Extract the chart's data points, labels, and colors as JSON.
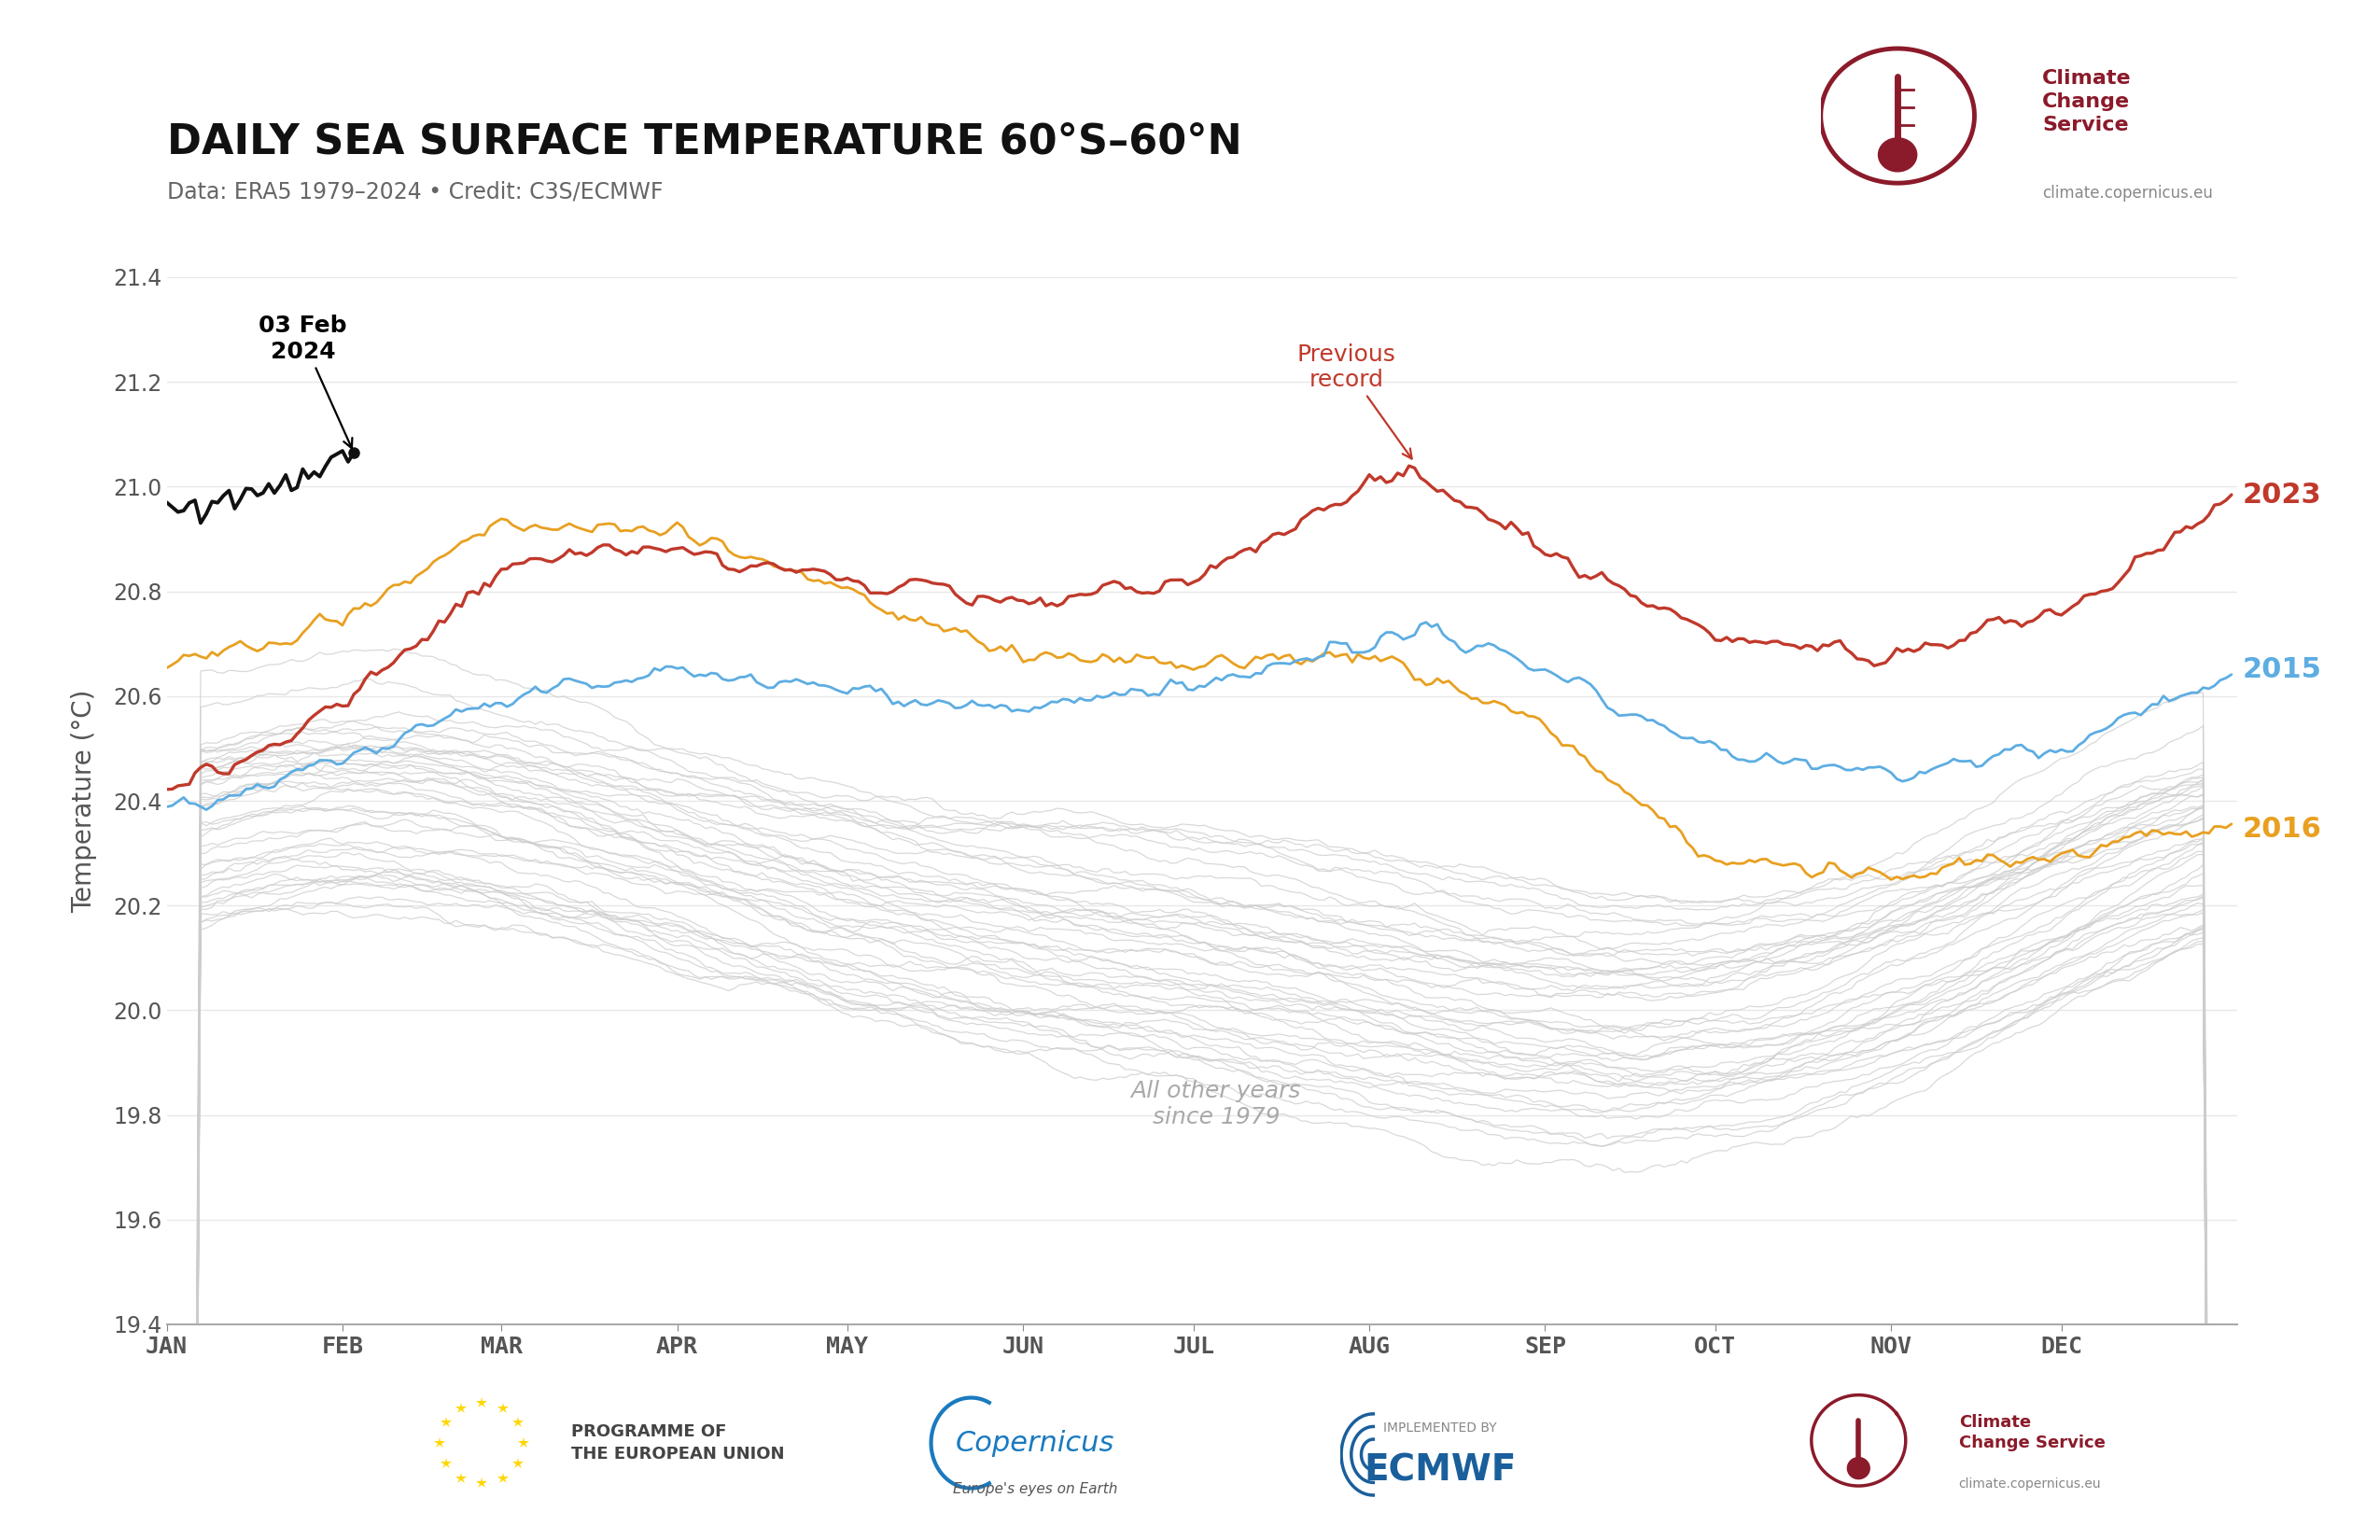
{
  "title": "DAILY SEA SURFACE TEMPERATURE 60°S–60°N",
  "subtitle": "Data: ERA5 1979–2024 • Credit: C3S/ECMWF",
  "ylabel": "Temperature (°C)",
  "ylim": [
    19.4,
    21.4
  ],
  "yticks": [
    19.4,
    19.6,
    19.8,
    20.0,
    20.2,
    20.4,
    20.6,
    20.8,
    21.0,
    21.2,
    21.4
  ],
  "months": [
    "JAN",
    "FEB",
    "MAR",
    "APR",
    "MAY",
    "JUN",
    "JUL",
    "AUG",
    "SEP",
    "OCT",
    "NOV",
    "DEC"
  ],
  "month_starts": [
    0,
    31,
    59,
    90,
    120,
    151,
    181,
    212,
    243,
    273,
    304,
    334
  ],
  "color_2023": "#c0392b",
  "color_2015": "#5dade2",
  "color_2016": "#e8a020",
  "color_2024": "#111111",
  "color_others": "#cccccc",
  "color_prev_record": "#c0392b",
  "annotation_date": "03 Feb\n2024",
  "annotation_prev": "Previous\nrecord",
  "label_2023": "2023",
  "label_2015": "2015",
  "label_2016": "2016",
  "background_color": "#ffffff",
  "grid_color": "#e8e8e8",
  "ccs_color": "#8b1a2a",
  "title_color": "#111111",
  "subtitle_color": "#666666",
  "axis_color": "#555555"
}
